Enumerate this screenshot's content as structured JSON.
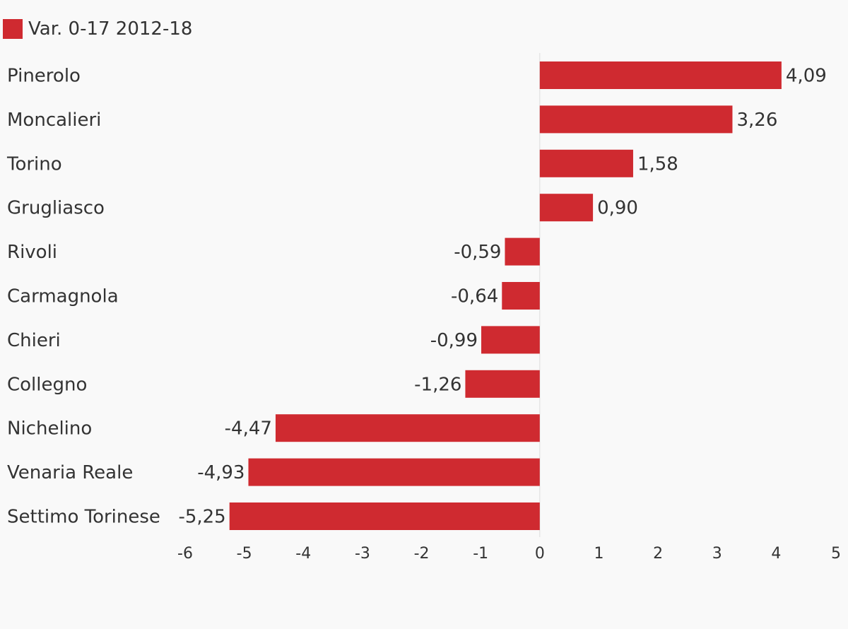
{
  "chart_data": {
    "type": "bar",
    "orientation": "horizontal",
    "categories": [
      "Pinerolo",
      "Moncalieri",
      "Torino",
      "Grugliasco",
      "Rivoli",
      "Carmagnola",
      "Chieri",
      "Collegno",
      "Nichelino",
      "Venaria Reale",
      "Settimo Torinese"
    ],
    "series": [
      {
        "name": "Var. 0-17 2012-18",
        "values": [
          4.09,
          3.26,
          1.58,
          0.9,
          -0.59,
          -0.64,
          -0.99,
          -1.26,
          -4.47,
          -4.93,
          -5.25
        ],
        "value_labels": [
          "4,09",
          "3,26",
          "1,58",
          "0,90",
          "-0,59",
          "-0,64",
          "-0,99",
          "-1,26",
          "-4,47",
          "-4,93",
          "-5,25"
        ]
      }
    ],
    "xlim": [
      -6,
      5
    ],
    "x_ticks": [
      -6,
      -5,
      -4,
      -3,
      -2,
      -1,
      0,
      1,
      2,
      3,
      4,
      5
    ],
    "title": "",
    "xlabel": "",
    "ylabel": "",
    "grid": false,
    "legend_position": "top-left",
    "bar_color": "#cf2a30"
  }
}
